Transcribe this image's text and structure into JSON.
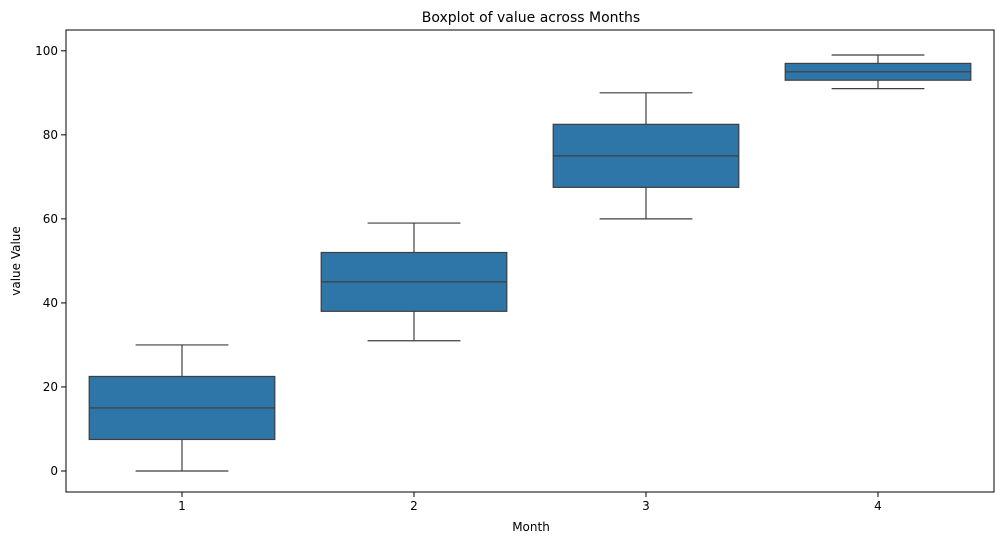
{
  "chart_data": {
    "type": "boxplot",
    "title": "Boxplot of value across Months",
    "xlabel": "Month",
    "ylabel": "value Value",
    "categories": [
      "1",
      "2",
      "3",
      "4"
    ],
    "ylim": [
      -5,
      104.95
    ],
    "yticks": [
      0,
      20,
      40,
      60,
      80,
      100
    ],
    "box_color": "#2e75a8",
    "line_color": "#3f3f3f",
    "boxes": [
      {
        "category": "1",
        "whislo": 0,
        "q1": 7.5,
        "median": 15,
        "q3": 22.5,
        "whishi": 30
      },
      {
        "category": "2",
        "whislo": 31,
        "q1": 38,
        "median": 45,
        "q3": 52,
        "whishi": 59
      },
      {
        "category": "3",
        "whislo": 60,
        "q1": 67.5,
        "median": 75,
        "q3": 82.5,
        "whishi": 90
      },
      {
        "category": "4",
        "whislo": 91,
        "q1": 93,
        "median": 95,
        "q3": 97,
        "whishi": 99
      }
    ]
  }
}
